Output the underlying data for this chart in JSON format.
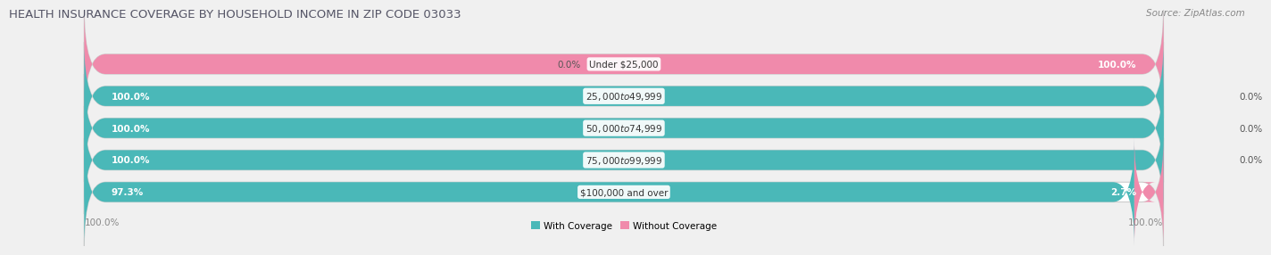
{
  "title": "HEALTH INSURANCE COVERAGE BY HOUSEHOLD INCOME IN ZIP CODE 03033",
  "source": "Source: ZipAtlas.com",
  "categories": [
    "Under $25,000",
    "$25,000 to $49,999",
    "$50,000 to $74,999",
    "$75,000 to $99,999",
    "$100,000 and over"
  ],
  "with_coverage": [
    0.0,
    100.0,
    100.0,
    100.0,
    97.3
  ],
  "without_coverage": [
    100.0,
    0.0,
    0.0,
    0.0,
    2.7
  ],
  "color_with": "#4ab8b8",
  "color_without": "#f08aab",
  "bar_height": 0.62,
  "background_color": "#f0f0f0",
  "bar_background": "#e8e8e8",
  "legend_with": "With Coverage",
  "legend_without": "Without Coverage",
  "axis_label_left": "100.0%",
  "axis_label_right": "100.0%",
  "title_fontsize": 9.5,
  "label_fontsize": 7.5,
  "cat_fontsize": 7.5,
  "tick_fontsize": 7.5,
  "source_fontsize": 7.5
}
